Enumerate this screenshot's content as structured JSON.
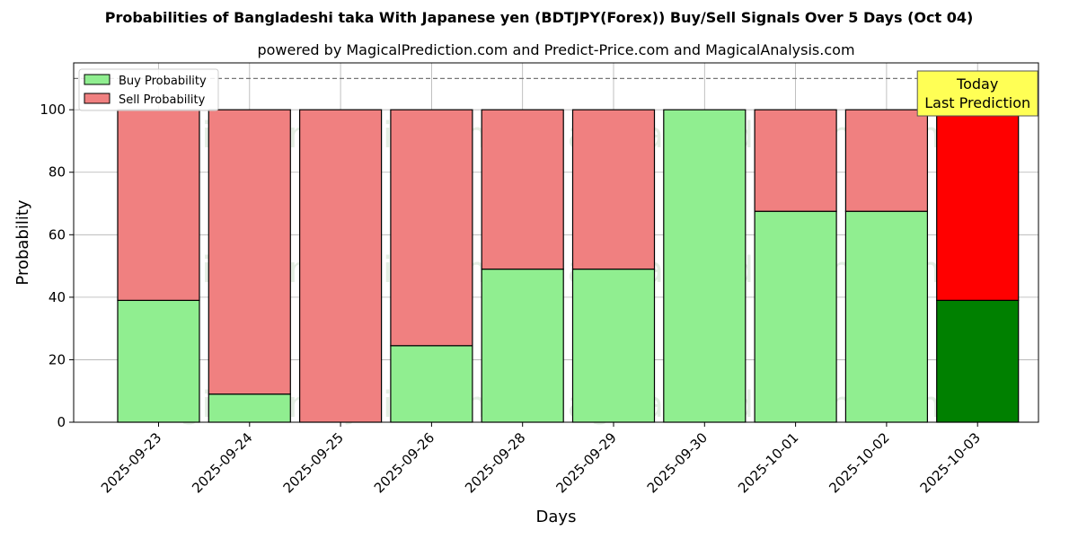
{
  "chart_data": {
    "type": "bar",
    "stacked": true,
    "title": "Probabilities of Bangladeshi taka With Japanese yen (BDTJPY(Forex)) Buy/Sell Signals Over 5 Days (Oct 04)",
    "subtitle": "powered by MagicalPrediction.com and Predict-Price.com and MagicalAnalysis.com",
    "xlabel": "Days",
    "ylabel": "Probability",
    "ylim": [
      0,
      115
    ],
    "yticks": [
      0,
      20,
      40,
      60,
      80,
      100
    ],
    "grid": true,
    "legend_position": "upper-left",
    "reference_line": {
      "y": 110,
      "style": "dashed"
    },
    "categories": [
      "2025-09-23",
      "2025-09-24",
      "2025-09-25",
      "2025-09-26",
      "2025-09-28",
      "2025-09-29",
      "2025-09-30",
      "2025-10-01",
      "2025-10-02",
      "2025-10-03"
    ],
    "series": [
      {
        "name": "Buy Probability",
        "color": "#90EE90",
        "values": [
          39,
          9,
          0,
          24.5,
          49,
          49,
          100,
          67.5,
          67.5,
          39
        ]
      },
      {
        "name": "Sell Probability",
        "color": "#F08080",
        "values": [
          61,
          91,
          100,
          75.5,
          51,
          51,
          0,
          32.5,
          32.5,
          61
        ]
      }
    ],
    "highlight": {
      "index": 9,
      "buy_color": "#008000",
      "sell_color": "#FF0000",
      "label_line1": "Today",
      "label_line2": "Last Prediction",
      "box_color": "#FFFF55"
    },
    "watermarks": [
      "MagicalAnalysis.com",
      "MagicalPrediction.com"
    ]
  }
}
